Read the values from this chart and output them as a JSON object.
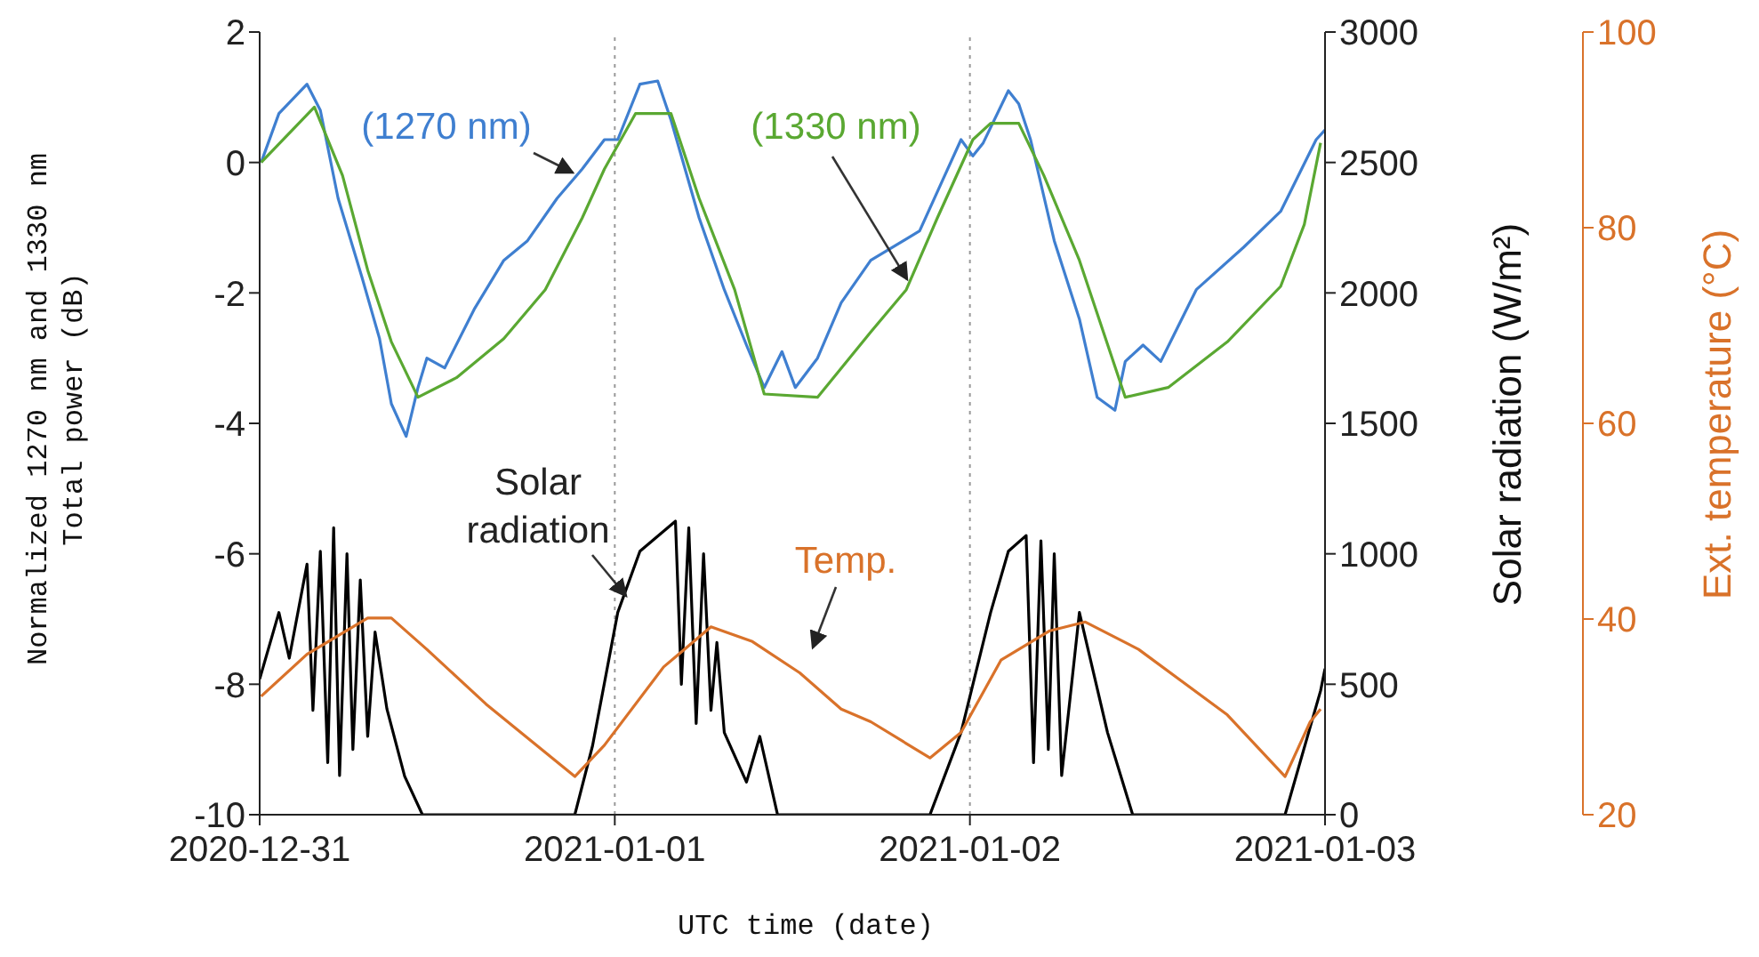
{
  "chart_data": {
    "type": "line",
    "xlabel": "UTC time (date)",
    "ylabel": "Normalized 1270 nm and 1330 nm\nTotal power (dB)",
    "y2label": "Solar radiation (W/m²)",
    "y3label": "Ext. temperature (°C)",
    "xlim": [
      "2020-12-31",
      "2021-01-03"
    ],
    "xticks": [
      "2020-12-31",
      "2021-01-01",
      "2021-01-02",
      "2021-01-03"
    ],
    "ylim": [
      -10,
      2
    ],
    "yticks": [
      -10,
      -8,
      -6,
      -4,
      -2,
      0,
      2
    ],
    "y2lim": [
      0,
      3000
    ],
    "y2ticks": [
      0,
      500,
      1000,
      1500,
      2000,
      2500,
      3000
    ],
    "y3lim": [
      20,
      100
    ],
    "y3ticks": [
      20,
      40,
      60,
      80,
      100
    ],
    "ref_lines": [
      {
        "axis": "x",
        "value": "2021-01-01",
        "color": "#999999",
        "line_style": "dotted"
      },
      {
        "axis": "x",
        "value": "2021-01-02",
        "color": "#999999",
        "line_style": "dotted"
      }
    ],
    "series": [
      {
        "name": "(1270 nm)",
        "color": "#3f7fd0",
        "x": [
          "2020-12-31T00:06",
          "2020-12-31T01:18",
          "2020-12-31T03:12",
          "2020-12-31T04:06",
          "2020-12-31T05:18",
          "2020-12-31T06:54",
          "2020-12-31T08:06",
          "2020-12-31T08:54",
          "2020-12-31T09:54",
          "2020-12-31T10:42",
          "2020-12-31T11:18",
          "2020-12-31T12:30",
          "2020-12-31T14:30",
          "2020-12-31T16:30",
          "2020-12-31T18:06",
          "2020-12-31T20:06",
          "2020-12-31T21:48",
          "2020-12-31T23:18",
          "2021-01-01T00:12",
          "2021-01-01T01:42",
          "2021-01-01T02:54",
          "2021-01-01T03:48",
          "2021-01-01T05:42",
          "2021-01-01T07:24",
          "2021-01-01T08:54",
          "2021-01-01T10:06",
          "2021-01-01T11:18",
          "2021-01-01T12:12",
          "2021-01-01T13:42",
          "2021-01-01T15:18",
          "2021-01-01T17:18",
          "2021-01-01T20:36",
          "2021-01-01T22:06",
          "2021-01-01T23:24",
          "2021-01-02T00:12",
          "2021-01-02T00:54",
          "2021-01-02T02:36",
          "2021-01-02T03:18",
          "2021-01-02T04:06",
          "2021-01-02T05:42",
          "2021-01-02T07:24",
          "2021-01-02T08:36",
          "2021-01-02T09:48",
          "2021-01-02T10:30",
          "2021-01-02T11:42",
          "2021-01-02T12:54",
          "2021-01-02T15:18",
          "2021-01-02T18:30",
          "2021-01-02T21:00",
          "2021-01-02T23:24",
          "2021-01-03T00:00"
        ],
        "values": [
          0.0,
          0.75,
          1.2,
          0.8,
          -0.55,
          -1.75,
          -2.7,
          -3.7,
          -4.2,
          -3.45,
          -3.0,
          -3.15,
          -2.25,
          -1.5,
          -1.2,
          -0.55,
          -0.1,
          0.35,
          0.35,
          1.2,
          1.25,
          0.65,
          -0.85,
          -1.95,
          -2.8,
          -3.45,
          -2.9,
          -3.45,
          -3.0,
          -2.15,
          -1.5,
          -1.05,
          -0.3,
          0.35,
          0.1,
          0.3,
          1.1,
          0.9,
          0.35,
          -1.2,
          -2.4,
          -3.6,
          -3.8,
          -3.05,
          -2.8,
          -3.05,
          -1.95,
          -1.3,
          -0.75,
          0.35,
          0.5
        ]
      },
      {
        "name": "(1330 nm)",
        "color": "#5aa832",
        "x": [
          "2020-12-31T00:06",
          "2020-12-31T03:42",
          "2020-12-31T05:36",
          "2020-12-31T07:18",
          "2020-12-31T08:54",
          "2020-12-31T10:42",
          "2020-12-31T13:18",
          "2020-12-31T16:30",
          "2020-12-31T19:18",
          "2020-12-31T21:48",
          "2020-12-31T23:18",
          "2021-01-01T01:24",
          "2021-01-01T03:48",
          "2021-01-01T05:42",
          "2021-01-01T08:06",
          "2021-01-01T10:06",
          "2021-01-01T13:42",
          "2021-01-01T17:18",
          "2021-01-01T19:42",
          "2021-01-01T21:48",
          "2021-01-02T00:12",
          "2021-01-02T01:24",
          "2021-01-02T03:18",
          "2021-01-02T05:00",
          "2021-01-02T07:24",
          "2021-01-02T10:30",
          "2021-01-02T13:24",
          "2021-01-02T17:24",
          "2021-01-02T21:00",
          "2021-01-02T22:36",
          "2021-01-02T23:42"
        ],
        "values": [
          0.0,
          0.85,
          -0.2,
          -1.65,
          -2.75,
          -3.6,
          -3.3,
          -2.7,
          -1.95,
          -0.85,
          -0.1,
          0.75,
          0.75,
          -0.55,
          -1.95,
          -3.55,
          -3.6,
          -2.6,
          -1.95,
          -0.85,
          0.35,
          0.6,
          0.6,
          -0.2,
          -1.5,
          -3.6,
          -3.45,
          -2.75,
          -1.9,
          -0.95,
          0.3
        ]
      },
      {
        "name": "Solar radiation",
        "color": "#000000",
        "axis": "y2",
        "x": [
          "2020-12-31T00:00",
          "2020-12-31T01:18",
          "2020-12-31T02:00",
          "2020-12-31T03:12",
          "2020-12-31T03:36",
          "2020-12-31T04:06",
          "2020-12-31T04:36",
          "2020-12-31T05:00",
          "2020-12-31T05:24",
          "2020-12-31T05:54",
          "2020-12-31T06:18",
          "2020-12-31T06:48",
          "2020-12-31T07:18",
          "2020-12-31T07:48",
          "2020-12-31T08:36",
          "2020-12-31T09:48",
          "2020-12-31T11:00",
          "2020-12-31T21:18",
          "2020-12-31T22:30",
          "2021-01-01T00:12",
          "2021-01-01T01:42",
          "2021-01-01T04:06",
          "2021-01-01T04:30",
          "2021-01-01T05:00",
          "2021-01-01T05:30",
          "2021-01-01T06:00",
          "2021-01-01T06:30",
          "2021-01-01T06:54",
          "2021-01-01T07:24",
          "2021-01-01T08:54",
          "2021-01-01T09:48",
          "2021-01-01T11:00",
          "2021-01-01T21:18",
          "2021-01-01T23:24",
          "2021-01-02T01:24",
          "2021-01-02T02:36",
          "2021-01-02T03:48",
          "2021-01-02T04:18",
          "2021-01-02T04:48",
          "2021-01-02T05:18",
          "2021-01-02T05:42",
          "2021-01-02T06:12",
          "2021-01-02T07:24",
          "2021-01-02T09:18",
          "2021-01-02T11:00",
          "2021-01-02T21:18",
          "2021-01-02T23:42",
          "2021-01-03T00:00"
        ],
        "values": [
          520,
          775,
          600,
          960,
          400,
          1010,
          200,
          1100,
          150,
          1000,
          250,
          900,
          300,
          700,
          405,
          147,
          0,
          0,
          265,
          775,
          1010,
          1125,
          500,
          1100,
          350,
          1000,
          400,
          660,
          315,
          125,
          300,
          0,
          0,
          315,
          775,
          1010,
          1070,
          200,
          1050,
          250,
          1000,
          150,
          775,
          315,
          0,
          0,
          475,
          560
        ]
      },
      {
        "name": "Temp.",
        "color": "#d9722a",
        "axis": "y3",
        "x": [
          "2020-12-31T00:06",
          "2020-12-31T03:12",
          "2020-12-31T07:18",
          "2020-12-31T08:54",
          "2020-12-31T11:18",
          "2020-12-31T15:18",
          "2020-12-31T21:18",
          "2020-12-31T23:18",
          "2021-01-01T03:18",
          "2021-01-01T06:30",
          "2021-01-01T09:18",
          "2021-01-01T12:30",
          "2021-01-01T15:18",
          "2021-01-01T17:18",
          "2021-01-01T21:18",
          "2021-01-01T23:24",
          "2021-01-02T02:06",
          "2021-01-02T05:24",
          "2021-01-02T07:48",
          "2021-01-02T11:24",
          "2021-01-02T17:24",
          "2021-01-02T21:18",
          "2021-01-02T23:00",
          "2021-01-02T23:42"
        ],
        "values": [
          32.1,
          36.4,
          40.1,
          40.1,
          36.9,
          31.3,
          23.9,
          27.1,
          35.1,
          39.2,
          37.7,
          34.5,
          30.8,
          29.5,
          25.8,
          28.4,
          35.8,
          38.8,
          39.7,
          36.9,
          30.2,
          23.9,
          29.5,
          30.8
        ]
      }
    ]
  }
}
